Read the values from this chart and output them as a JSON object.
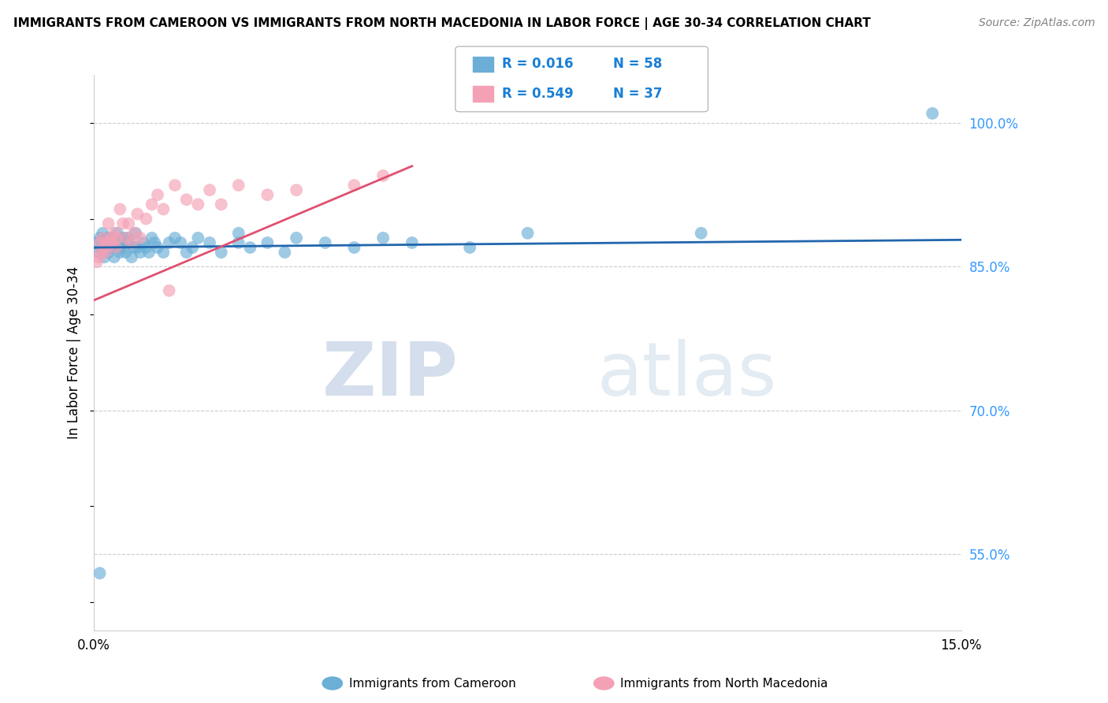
{
  "title": "IMMIGRANTS FROM CAMEROON VS IMMIGRANTS FROM NORTH MACEDONIA IN LABOR FORCE | AGE 30-34 CORRELATION CHART",
  "source": "Source: ZipAtlas.com",
  "ylabel": "In Labor Force | Age 30-34",
  "xlim": [
    0.0,
    15.0
  ],
  "ylim": [
    47.0,
    105.0
  ],
  "yticks": [
    55.0,
    70.0,
    85.0,
    100.0
  ],
  "ytick_labels": [
    "55.0%",
    "70.0%",
    "85.0%",
    "100.0%"
  ],
  "xticks": [
    0.0,
    3.0,
    6.0,
    9.0,
    12.0,
    15.0
  ],
  "xtick_labels": [
    "0.0%",
    "",
    "",
    "",
    "",
    "15.0%"
  ],
  "blue_color": "#6baed6",
  "pink_color": "#f4a0b5",
  "blue_line_color": "#2166ac",
  "pink_line_color": "#e05070",
  "legend_R_blue": "R = 0.016",
  "legend_N_blue": "N = 58",
  "legend_R_pink": "R = 0.549",
  "legend_N_pink": "N = 37",
  "watermark_zip": "ZIP",
  "watermark_atlas": "atlas",
  "blue_line_x": [
    0.0,
    15.0
  ],
  "blue_line_y": [
    87.0,
    87.8
  ],
  "pink_line_x": [
    0.0,
    5.5
  ],
  "pink_line_y": [
    81.5,
    95.5
  ],
  "blue_x": [
    0.05,
    0.08,
    0.1,
    0.12,
    0.15,
    0.18,
    0.2,
    0.22,
    0.25,
    0.28,
    0.3,
    0.32,
    0.35,
    0.38,
    0.4,
    0.42,
    0.45,
    0.48,
    0.5,
    0.52,
    0.55,
    0.58,
    0.6,
    0.65,
    0.7,
    0.72,
    0.75,
    0.8,
    0.85,
    0.9,
    0.95,
    1.0,
    1.05,
    1.1,
    1.2,
    1.3,
    1.4,
    1.5,
    1.6,
    1.7,
    1.8,
    2.0,
    2.2,
    2.5,
    2.7,
    3.0,
    3.3,
    3.5,
    4.0,
    4.5,
    5.0,
    5.5,
    6.5,
    2.5,
    7.5,
    10.5,
    14.5,
    0.1
  ],
  "blue_y": [
    87.5,
    86.5,
    88.0,
    87.0,
    88.5,
    86.0,
    87.5,
    88.0,
    86.5,
    87.0,
    88.0,
    87.5,
    86.0,
    87.0,
    88.5,
    87.0,
    86.5,
    87.5,
    88.0,
    87.0,
    86.5,
    88.0,
    87.5,
    86.0,
    87.0,
    88.5,
    87.0,
    86.5,
    87.5,
    87.0,
    86.5,
    88.0,
    87.5,
    87.0,
    86.5,
    87.5,
    88.0,
    87.5,
    86.5,
    87.0,
    88.0,
    87.5,
    86.5,
    87.5,
    87.0,
    87.5,
    86.5,
    88.0,
    87.5,
    87.0,
    88.0,
    87.5,
    87.0,
    88.5,
    88.5,
    88.5,
    101.0,
    53.0
  ],
  "pink_x": [
    0.05,
    0.08,
    0.1,
    0.12,
    0.15,
    0.18,
    0.2,
    0.22,
    0.25,
    0.3,
    0.32,
    0.35,
    0.38,
    0.4,
    0.45,
    0.5,
    0.55,
    0.6,
    0.65,
    0.7,
    0.75,
    0.8,
    0.9,
    1.0,
    1.1,
    1.2,
    1.4,
    1.6,
    1.8,
    2.0,
    2.2,
    2.5,
    3.0,
    3.5,
    4.5,
    5.0,
    1.3
  ],
  "pink_y": [
    85.5,
    86.0,
    87.5,
    86.5,
    88.0,
    87.0,
    86.5,
    87.5,
    89.5,
    88.0,
    87.5,
    88.5,
    87.0,
    88.0,
    91.0,
    89.5,
    88.0,
    89.5,
    87.5,
    88.5,
    90.5,
    88.0,
    90.0,
    91.5,
    92.5,
    91.0,
    93.5,
    92.0,
    91.5,
    93.0,
    91.5,
    93.5,
    92.5,
    93.0,
    93.5,
    94.5,
    82.5
  ]
}
